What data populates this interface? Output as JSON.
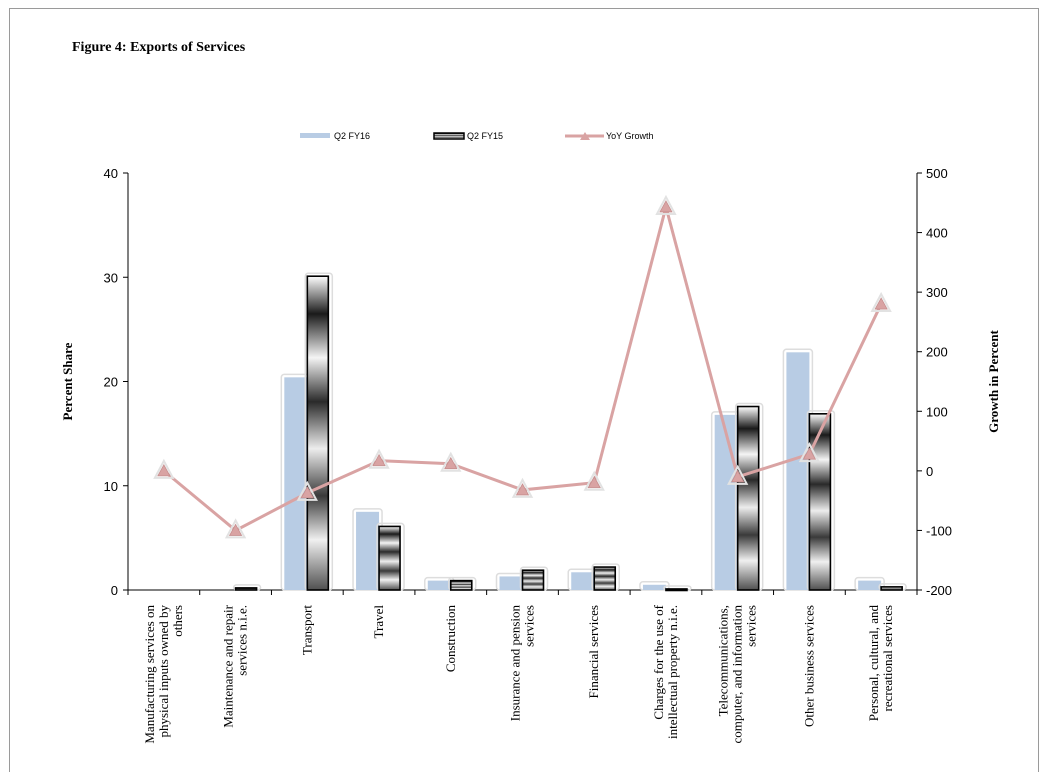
{
  "chart_data": {
    "type": "bar",
    "title": "Figure 4: Exports of Services",
    "categories": [
      [
        "Manufacturing services on",
        "physical inputs owned by",
        "others"
      ],
      [
        "Maintenance and repair",
        "services n.i.e."
      ],
      [
        "Transport"
      ],
      [
        "Travel"
      ],
      [
        "Construction"
      ],
      [
        "Insurance and pension",
        "services"
      ],
      [
        "Financial services"
      ],
      [
        "Charges for the use of",
        "intellectual property n.i.e."
      ],
      [
        "Telecommunications,",
        "computer, and information",
        "services"
      ],
      [
        "Other business services"
      ],
      [
        "Personal, cultural, and",
        "recreational services"
      ]
    ],
    "series": [
      {
        "name": "Q2 FY16",
        "type": "bar",
        "axis": "left",
        "color": "#b8cce4",
        "values": [
          0.0,
          0.0,
          20.4,
          7.5,
          0.9,
          1.3,
          1.7,
          0.5,
          16.8,
          22.8,
          0.9
        ]
      },
      {
        "name": "Q2 FY15",
        "type": "bar",
        "axis": "left",
        "color": "#000000",
        "values": [
          0.0,
          0.2,
          30.1,
          6.1,
          0.9,
          1.9,
          2.2,
          0.1,
          17.6,
          16.9,
          0.3
        ]
      },
      {
        "name": "YoY Growth",
        "type": "line",
        "axis": "right",
        "color": "#d9a3a3",
        "values": [
          0,
          -100,
          -37,
          17,
          12,
          -32,
          -20,
          443,
          -10,
          28,
          280
        ]
      }
    ],
    "ylabel": "Percent Share",
    "ylim": [
      0,
      40
    ],
    "yticks": [
      0,
      10,
      20,
      30,
      40
    ],
    "y2label": "Growth in Percent",
    "y2lim": [
      -200,
      500
    ],
    "y2ticks": [
      -200,
      -100,
      0,
      100,
      200,
      300,
      400,
      500
    ],
    "grid": false,
    "legend_position": "top"
  }
}
